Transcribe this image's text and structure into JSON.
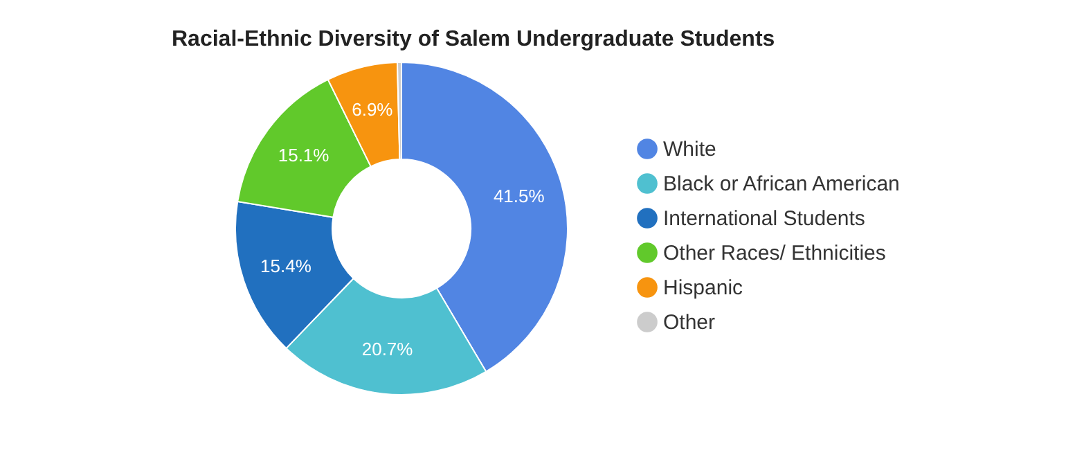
{
  "chart_data": {
    "type": "donut",
    "title": "Racial-Ethnic Diversity of Salem Undergraduate Students",
    "categories": [
      "White",
      "Black or African American",
      "International Students",
      "Other Races/ Ethnicities",
      "Hispanic",
      "Other"
    ],
    "values": [
      41.5,
      20.7,
      15.4,
      15.1,
      6.9,
      0.4
    ],
    "colors": [
      "#5185e3",
      "#4fc0d0",
      "#2170bf",
      "#61c92b",
      "#f7940f",
      "#cccccc"
    ],
    "value_labels": [
      "41.5%",
      "20.7%",
      "15.4%",
      "15.1%",
      "6.9%",
      null
    ],
    "legend": "right"
  }
}
